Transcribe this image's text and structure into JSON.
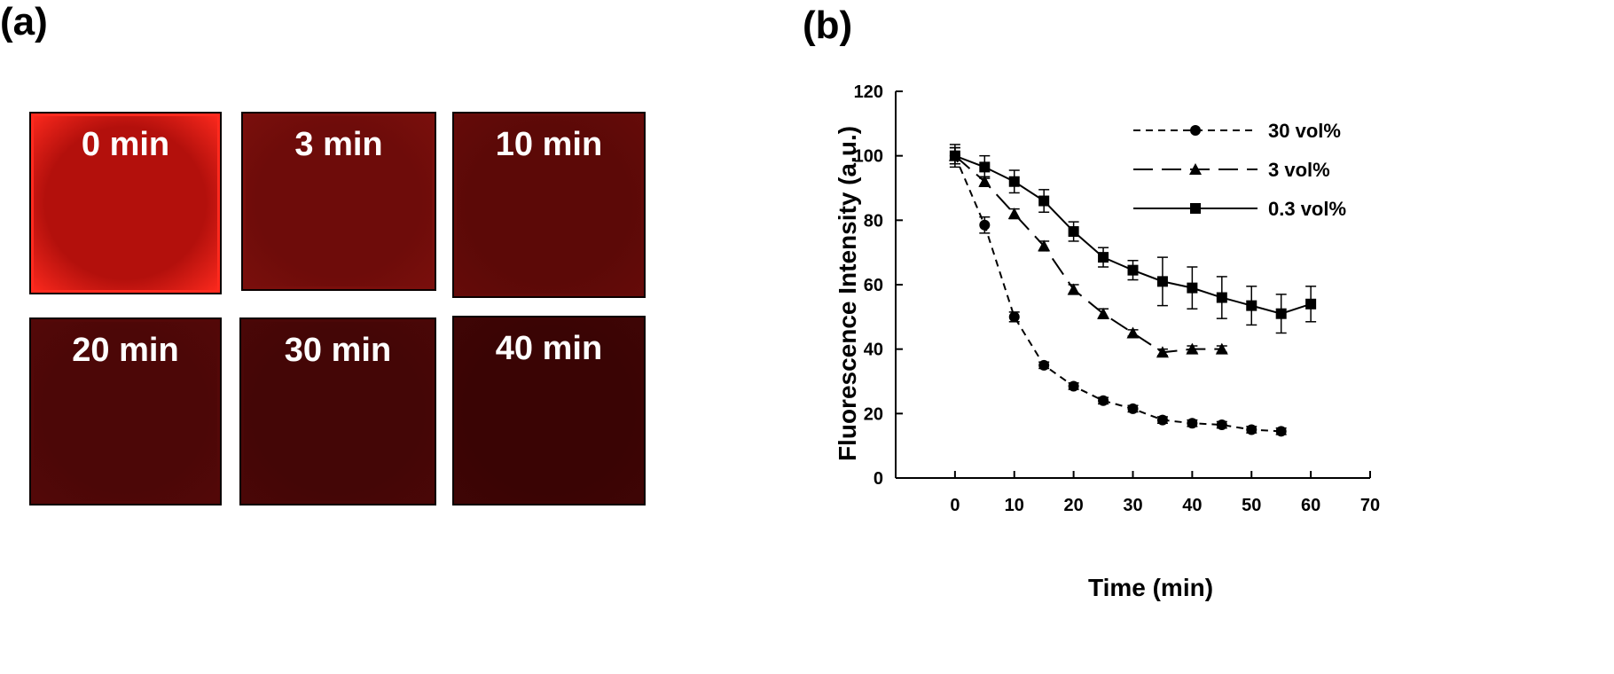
{
  "panel_a": {
    "label": "(a)",
    "tiles": [
      {
        "text": "0 min",
        "color": "#b3100c",
        "edge": "#ff2a1e"
      },
      {
        "text": "3 min",
        "color": "#6e0c0a",
        "edge": "#7a0f0c"
      },
      {
        "text": "10 min",
        "color": "#5c0907",
        "edge": "#650b09"
      },
      {
        "text": "20 min",
        "color": "#4c0707",
        "edge": "#530808"
      },
      {
        "text": "30 min",
        "color": "#440606",
        "edge": "#4a0707"
      },
      {
        "text": "40 min",
        "color": "#3a0404",
        "edge": "#3f0505"
      }
    ]
  },
  "panel_b": {
    "label": "(b)"
  },
  "chart_data": {
    "type": "line",
    "xlabel": "Time (min)",
    "ylabel": "Fluorescence Intensity (a.u.)",
    "xlim": [
      -10,
      70
    ],
    "ylim": [
      0,
      120
    ],
    "xticks": [
      0,
      10,
      20,
      30,
      40,
      50,
      60,
      70
    ],
    "yticks": [
      0,
      20,
      40,
      60,
      80,
      100,
      120
    ],
    "legend_position": "top-right",
    "series": [
      {
        "name": "30 vol%",
        "marker": "circle",
        "dash": "8,6",
        "x": [
          0,
          5,
          10,
          15,
          20,
          25,
          30,
          35,
          40,
          45,
          50,
          55
        ],
        "y": [
          100,
          78.5,
          50,
          35,
          28.5,
          24,
          21.5,
          18,
          17,
          16.5,
          15,
          14.5
        ],
        "err": [
          2.5,
          2.5,
          1.5,
          1,
          1,
          1,
          1,
          1,
          1,
          1,
          1,
          1
        ]
      },
      {
        "name": "3 vol%",
        "marker": "triangle",
        "dash": "22,10",
        "x": [
          0,
          5,
          10,
          15,
          20,
          25,
          30,
          35,
          40,
          45
        ],
        "y": [
          100,
          92,
          82,
          72,
          58.5,
          51,
          45,
          39,
          40,
          40
        ],
        "err": [
          2.5,
          1.5,
          1.5,
          1.5,
          1.5,
          1.5,
          1,
          1,
          1,
          1
        ]
      },
      {
        "name": "0.3 vol%",
        "marker": "square",
        "dash": "",
        "x": [
          0,
          5,
          10,
          15,
          20,
          25,
          30,
          35,
          40,
          45,
          50,
          55,
          60
        ],
        "y": [
          100,
          96.5,
          92,
          86,
          76.5,
          68.5,
          64.5,
          61,
          59,
          56,
          53.5,
          51,
          54
        ],
        "err": [
          3.5,
          3.5,
          3.5,
          3.5,
          3,
          3,
          3,
          7.5,
          6.5,
          6.5,
          6,
          6,
          5.5
        ]
      }
    ]
  }
}
